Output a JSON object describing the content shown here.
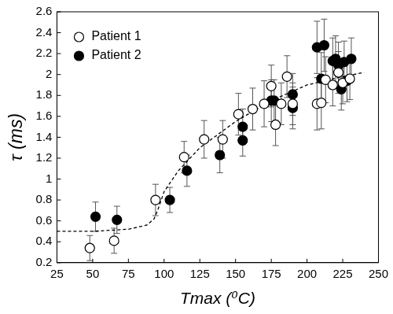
{
  "chart_data": {
    "type": "scatter",
    "x_label": "Tmax (⁰C)",
    "y_label": "τ (ms)",
    "xlim": [
      25,
      250
    ],
    "xticks": [
      25,
      50,
      75,
      100,
      125,
      150,
      175,
      200,
      225,
      250
    ],
    "ylim": [
      0.2,
      2.6
    ],
    "yticks": [
      0.2,
      0.4,
      0.6,
      0.8,
      1,
      1.2,
      1.4,
      1.6,
      1.8,
      2,
      2.2,
      2.4,
      2.6
    ],
    "grid": false,
    "legend": "upper left",
    "series": [
      {
        "name": "Patient 1",
        "color": "#000000",
        "marker": "open_circle",
        "x": [
          48,
          65,
          94,
          114,
          128,
          141,
          152,
          162,
          170,
          175,
          178,
          182,
          186,
          190,
          207,
          210,
          213,
          218,
          222,
          225,
          230
        ],
        "values": [
          0.34,
          0.41,
          0.8,
          1.21,
          1.38,
          1.38,
          1.62,
          1.67,
          1.72,
          1.89,
          1.52,
          1.72,
          1.98,
          1.72,
          1.72,
          1.73,
          1.95,
          1.9,
          2.02,
          1.92,
          1.96
        ],
        "errors": [
          0.12,
          0.12,
          0.15,
          0.15,
          0.18,
          0.18,
          0.2,
          0.2,
          0.22,
          0.2,
          0.2,
          0.2,
          0.2,
          0.2,
          0.25,
          0.25,
          0.22,
          0.2,
          0.2,
          0.2,
          0.2
        ]
      },
      {
        "name": "Patient 2",
        "color": "#000000",
        "marker": "circle",
        "x": [
          52,
          67,
          104,
          116,
          139,
          155,
          155,
          175,
          177,
          190,
          190,
          207,
          210,
          212,
          218,
          220,
          222,
          224,
          226,
          228,
          231
        ],
        "values": [
          0.64,
          0.61,
          0.8,
          1.08,
          1.23,
          1.37,
          1.5,
          1.75,
          1.75,
          1.68,
          1.81,
          2.26,
          1.96,
          2.28,
          2.13,
          2.15,
          2.09,
          1.86,
          2.12,
          1.94,
          2.15
        ],
        "errors": [
          0.14,
          0.13,
          0.12,
          0.15,
          0.17,
          0.15,
          0.17,
          0.2,
          0.2,
          0.2,
          0.2,
          0.25,
          0.25,
          0.25,
          0.22,
          0.22,
          0.22,
          0.2,
          0.2,
          0.2,
          0.2
        ]
      }
    ],
    "fit": {
      "color": "#000000",
      "line_style": "dashed",
      "x": [
        25,
        50,
        75,
        88,
        93,
        96,
        98,
        100,
        105,
        110,
        125,
        150,
        175,
        200,
        225,
        240
      ],
      "values": [
        0.5,
        0.5,
        0.52,
        0.56,
        0.62,
        0.72,
        0.8,
        0.88,
        0.98,
        1.08,
        1.3,
        1.55,
        1.75,
        1.9,
        1.98,
        2.02
      ]
    }
  }
}
